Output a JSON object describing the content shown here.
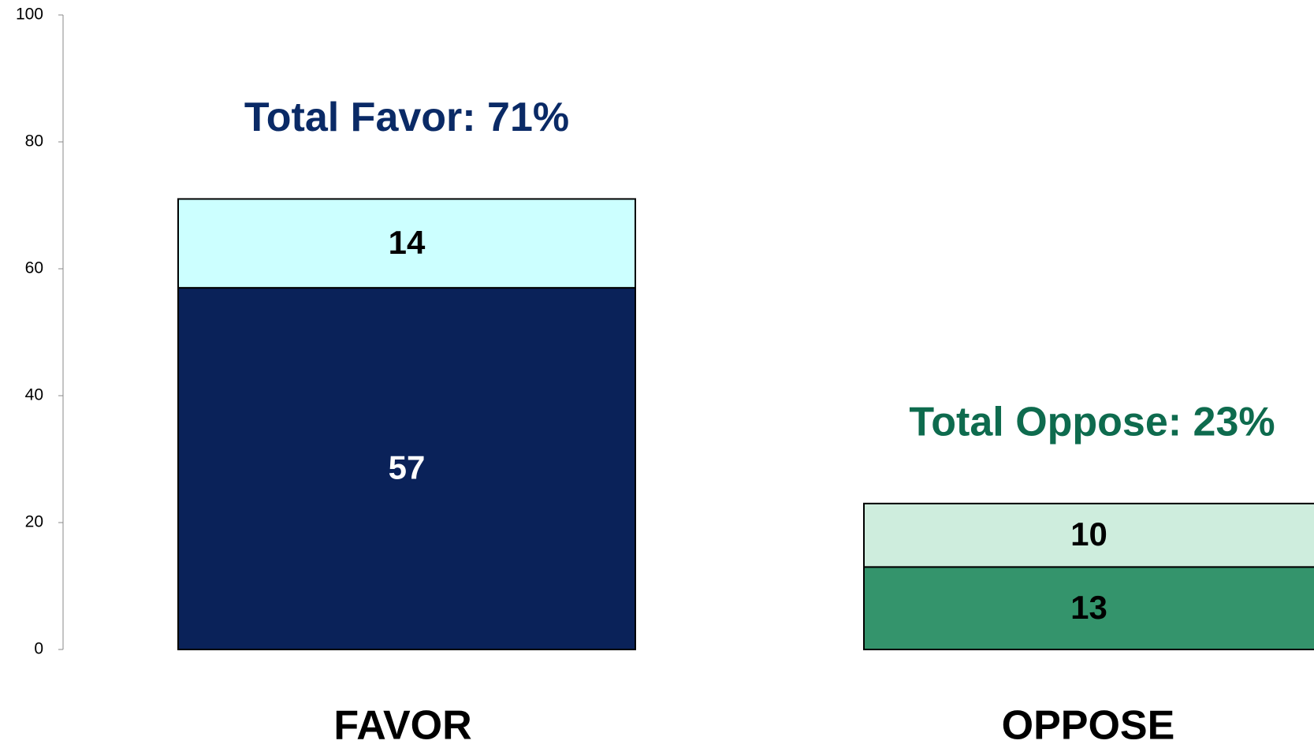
{
  "chart_data": {
    "type": "stacked_bar",
    "categories": [
      "FAVOR",
      "OPPOSE"
    ],
    "series": [
      {
        "colors": [
          "#0a2259",
          "#34946c"
        ],
        "label_colors": [
          "#ffffff",
          "#000000"
        ],
        "values": [
          57,
          13
        ]
      },
      {
        "colors": [
          "#ccffff",
          "#ceeddd"
        ],
        "label_colors": [
          "#000000",
          "#000000"
        ],
        "values": [
          14,
          10
        ]
      }
    ],
    "annotations": [
      {
        "text": "Total Favor: 71%",
        "color": "#0a2a66"
      },
      {
        "text": "Total Oppose: 23%",
        "color": "#0e6b4e"
      }
    ],
    "ylim": [
      0,
      100
    ],
    "yticks": [
      0,
      20,
      40,
      60,
      80,
      100
    ],
    "grid": false
  }
}
